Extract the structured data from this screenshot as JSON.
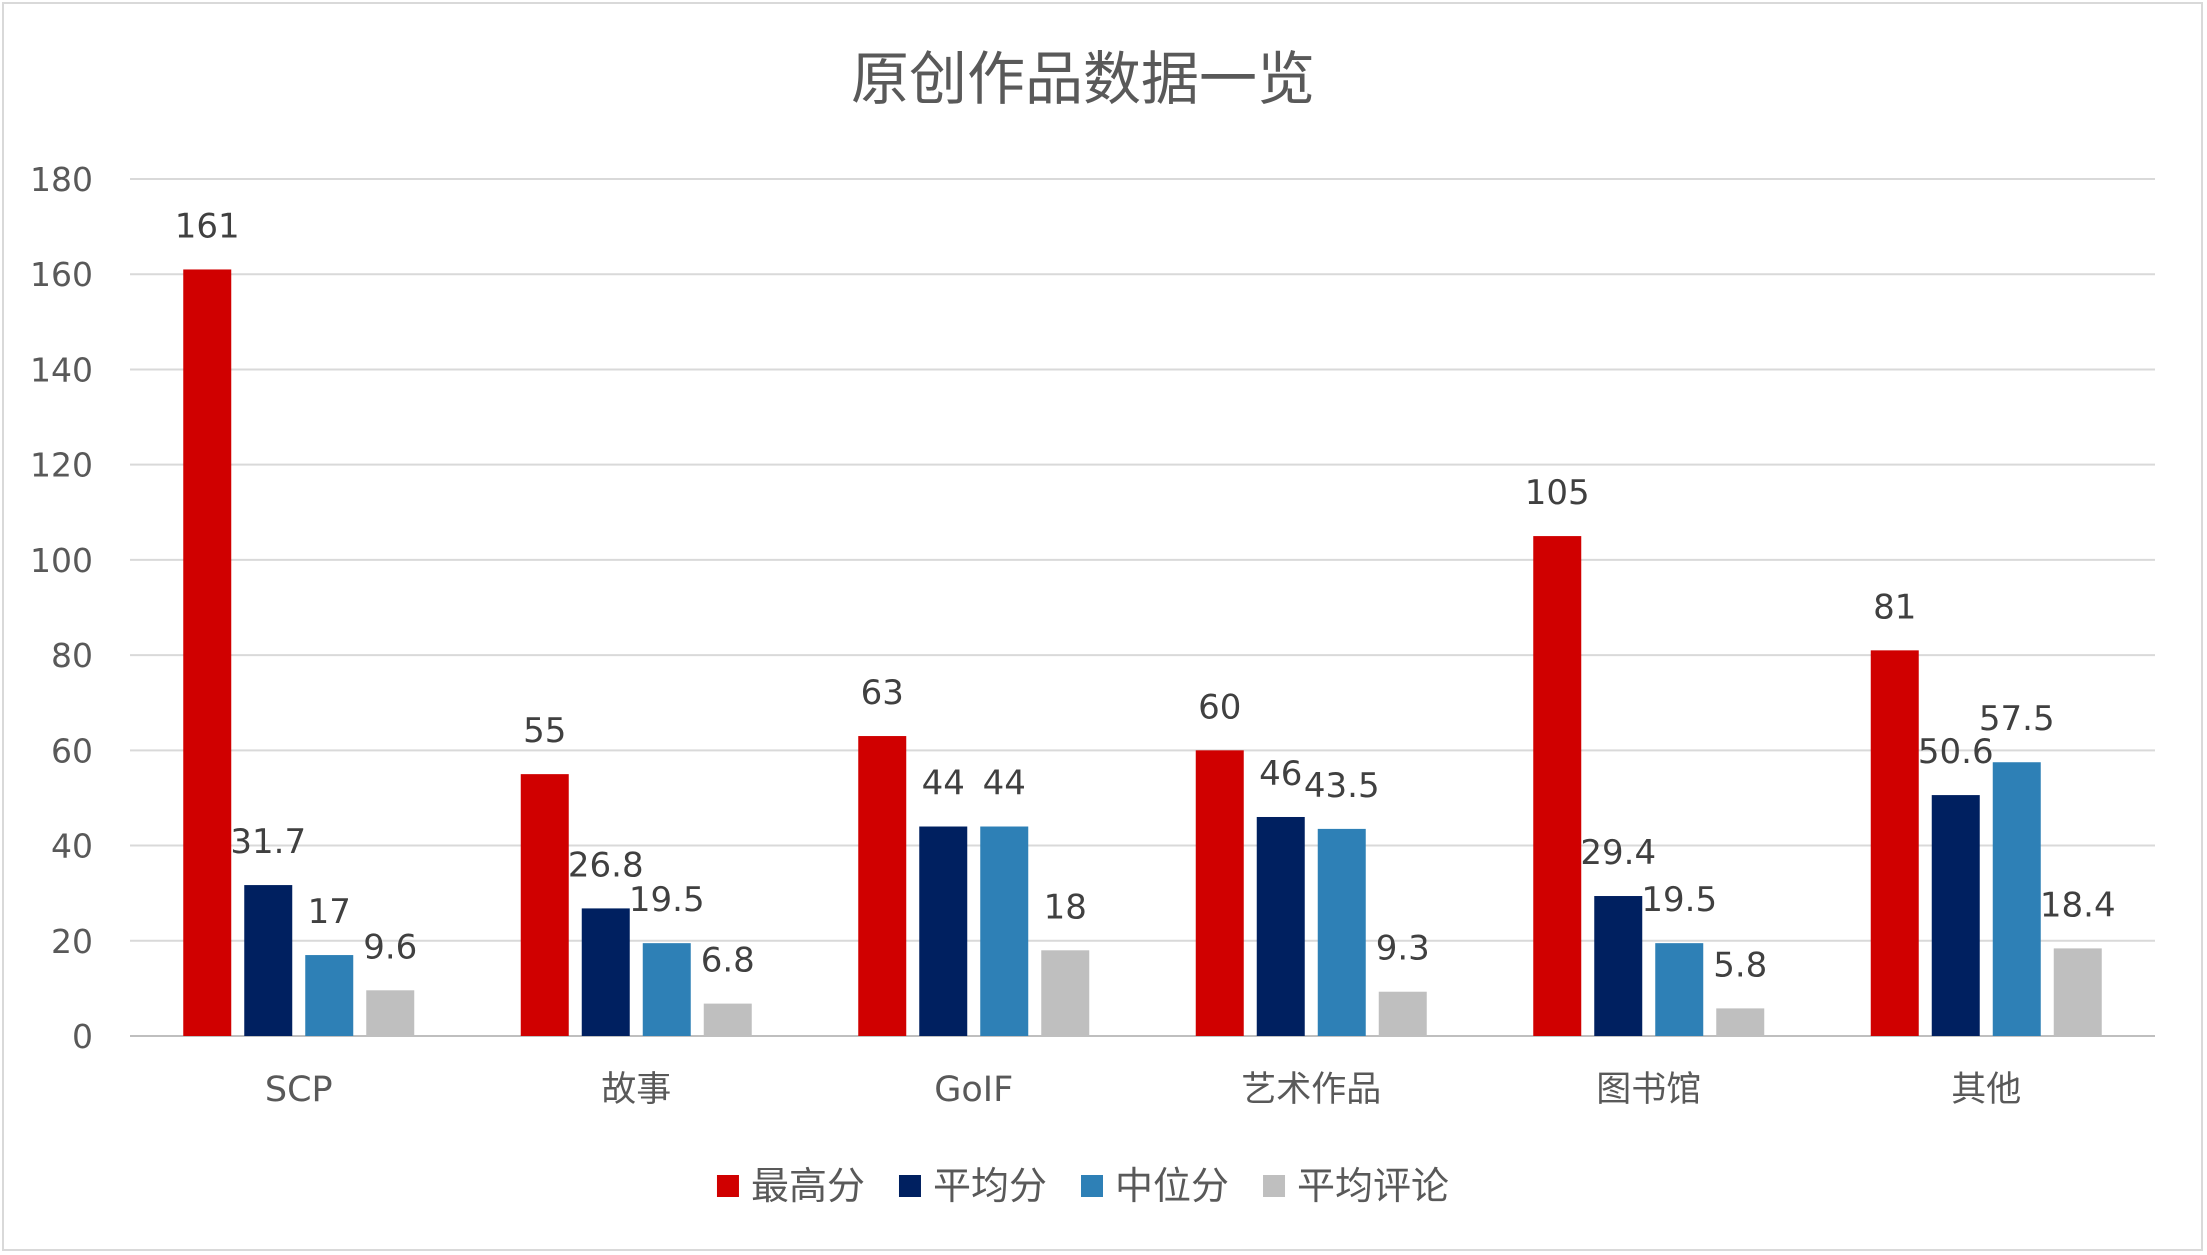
{
  "chart_data": {
    "type": "bar",
    "title": "原创作品数据一览",
    "categories": [
      "SCP",
      "故事",
      "GoIF",
      "艺术作品",
      "图书馆",
      "其他"
    ],
    "series": [
      {
        "name": "最高分",
        "color": "#d00000",
        "values": [
          161,
          55,
          63,
          60,
          105,
          81
        ]
      },
      {
        "name": "平均分",
        "color": "#002060",
        "values": [
          31.7,
          26.8,
          44,
          46,
          29.4,
          50.6
        ]
      },
      {
        "name": "中位分",
        "color": "#2e80b6",
        "values": [
          17,
          19.5,
          44,
          43.5,
          19.5,
          57.5
        ]
      },
      {
        "name": "平均评论",
        "color": "#bfbfbf",
        "values": [
          9.6,
          6.8,
          18,
          9.3,
          5.8,
          18.4
        ]
      }
    ],
    "ylim": [
      0,
      180
    ],
    "yticks": [
      0,
      20,
      40,
      60,
      80,
      100,
      120,
      140,
      160,
      180
    ],
    "xlabel": "",
    "ylabel": "",
    "grid": true,
    "data_labels": true,
    "legend": "bottom"
  }
}
